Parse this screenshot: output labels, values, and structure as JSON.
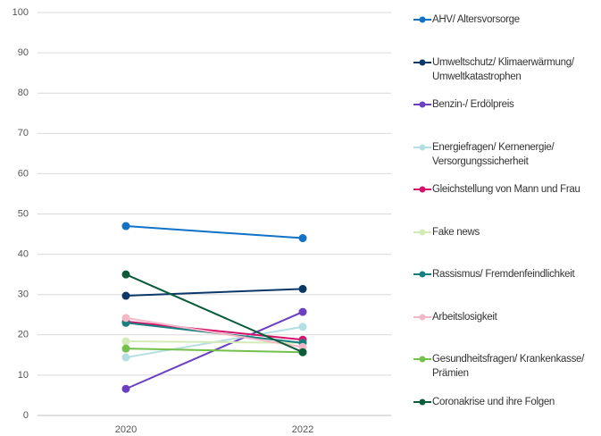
{
  "chart_data": {
    "type": "line",
    "categories": [
      "2020",
      "2022"
    ],
    "series": [
      {
        "name": "AHV/ Altersvorsorge",
        "color": "#1172c6",
        "values": [
          47,
          44
        ]
      },
      {
        "name": "Umweltschutz/ Klimaerwärmung/ Umweltkatastrophen",
        "color": "#0c3868",
        "values": [
          29.7,
          31.4
        ]
      },
      {
        "name": "Benzin-/ Erdölpreis",
        "color": "#6a40c0",
        "values": [
          6.6,
          25.7
        ]
      },
      {
        "name": "Energiefragen/ Kernenergie/ Versorgungssicherheit",
        "color": "#b4dfe2",
        "values": [
          14.4,
          22
        ]
      },
      {
        "name": "Gleichstellung von Mann und Frau",
        "color": "#d5136b",
        "values": [
          23.3,
          18.8
        ]
      },
      {
        "name": "Fake news",
        "color": "#d3ebb7",
        "values": [
          18.4,
          18
        ]
      },
      {
        "name": "Rassismus/ Fremdenfeindlichkeit",
        "color": "#177f80",
        "values": [
          23,
          18
        ]
      },
      {
        "name": "Arbeitslosigkeit",
        "color": "#f4b7c7",
        "values": [
          24.2,
          17
        ]
      },
      {
        "name": "Gesundheitsfragen/ Krankenkasse/ Prämien",
        "color": "#73c04a",
        "values": [
          16.6,
          15.7
        ]
      },
      {
        "name": "Coronakrise und ihre Folgen",
        "color": "#0c5c3a",
        "values": [
          35,
          15.7
        ]
      }
    ],
    "ylim": [
      0,
      100
    ],
    "yticks": [
      0,
      10,
      20,
      30,
      40,
      50,
      60,
      70,
      80,
      90,
      100
    ],
    "grid": true,
    "legend": "right"
  }
}
